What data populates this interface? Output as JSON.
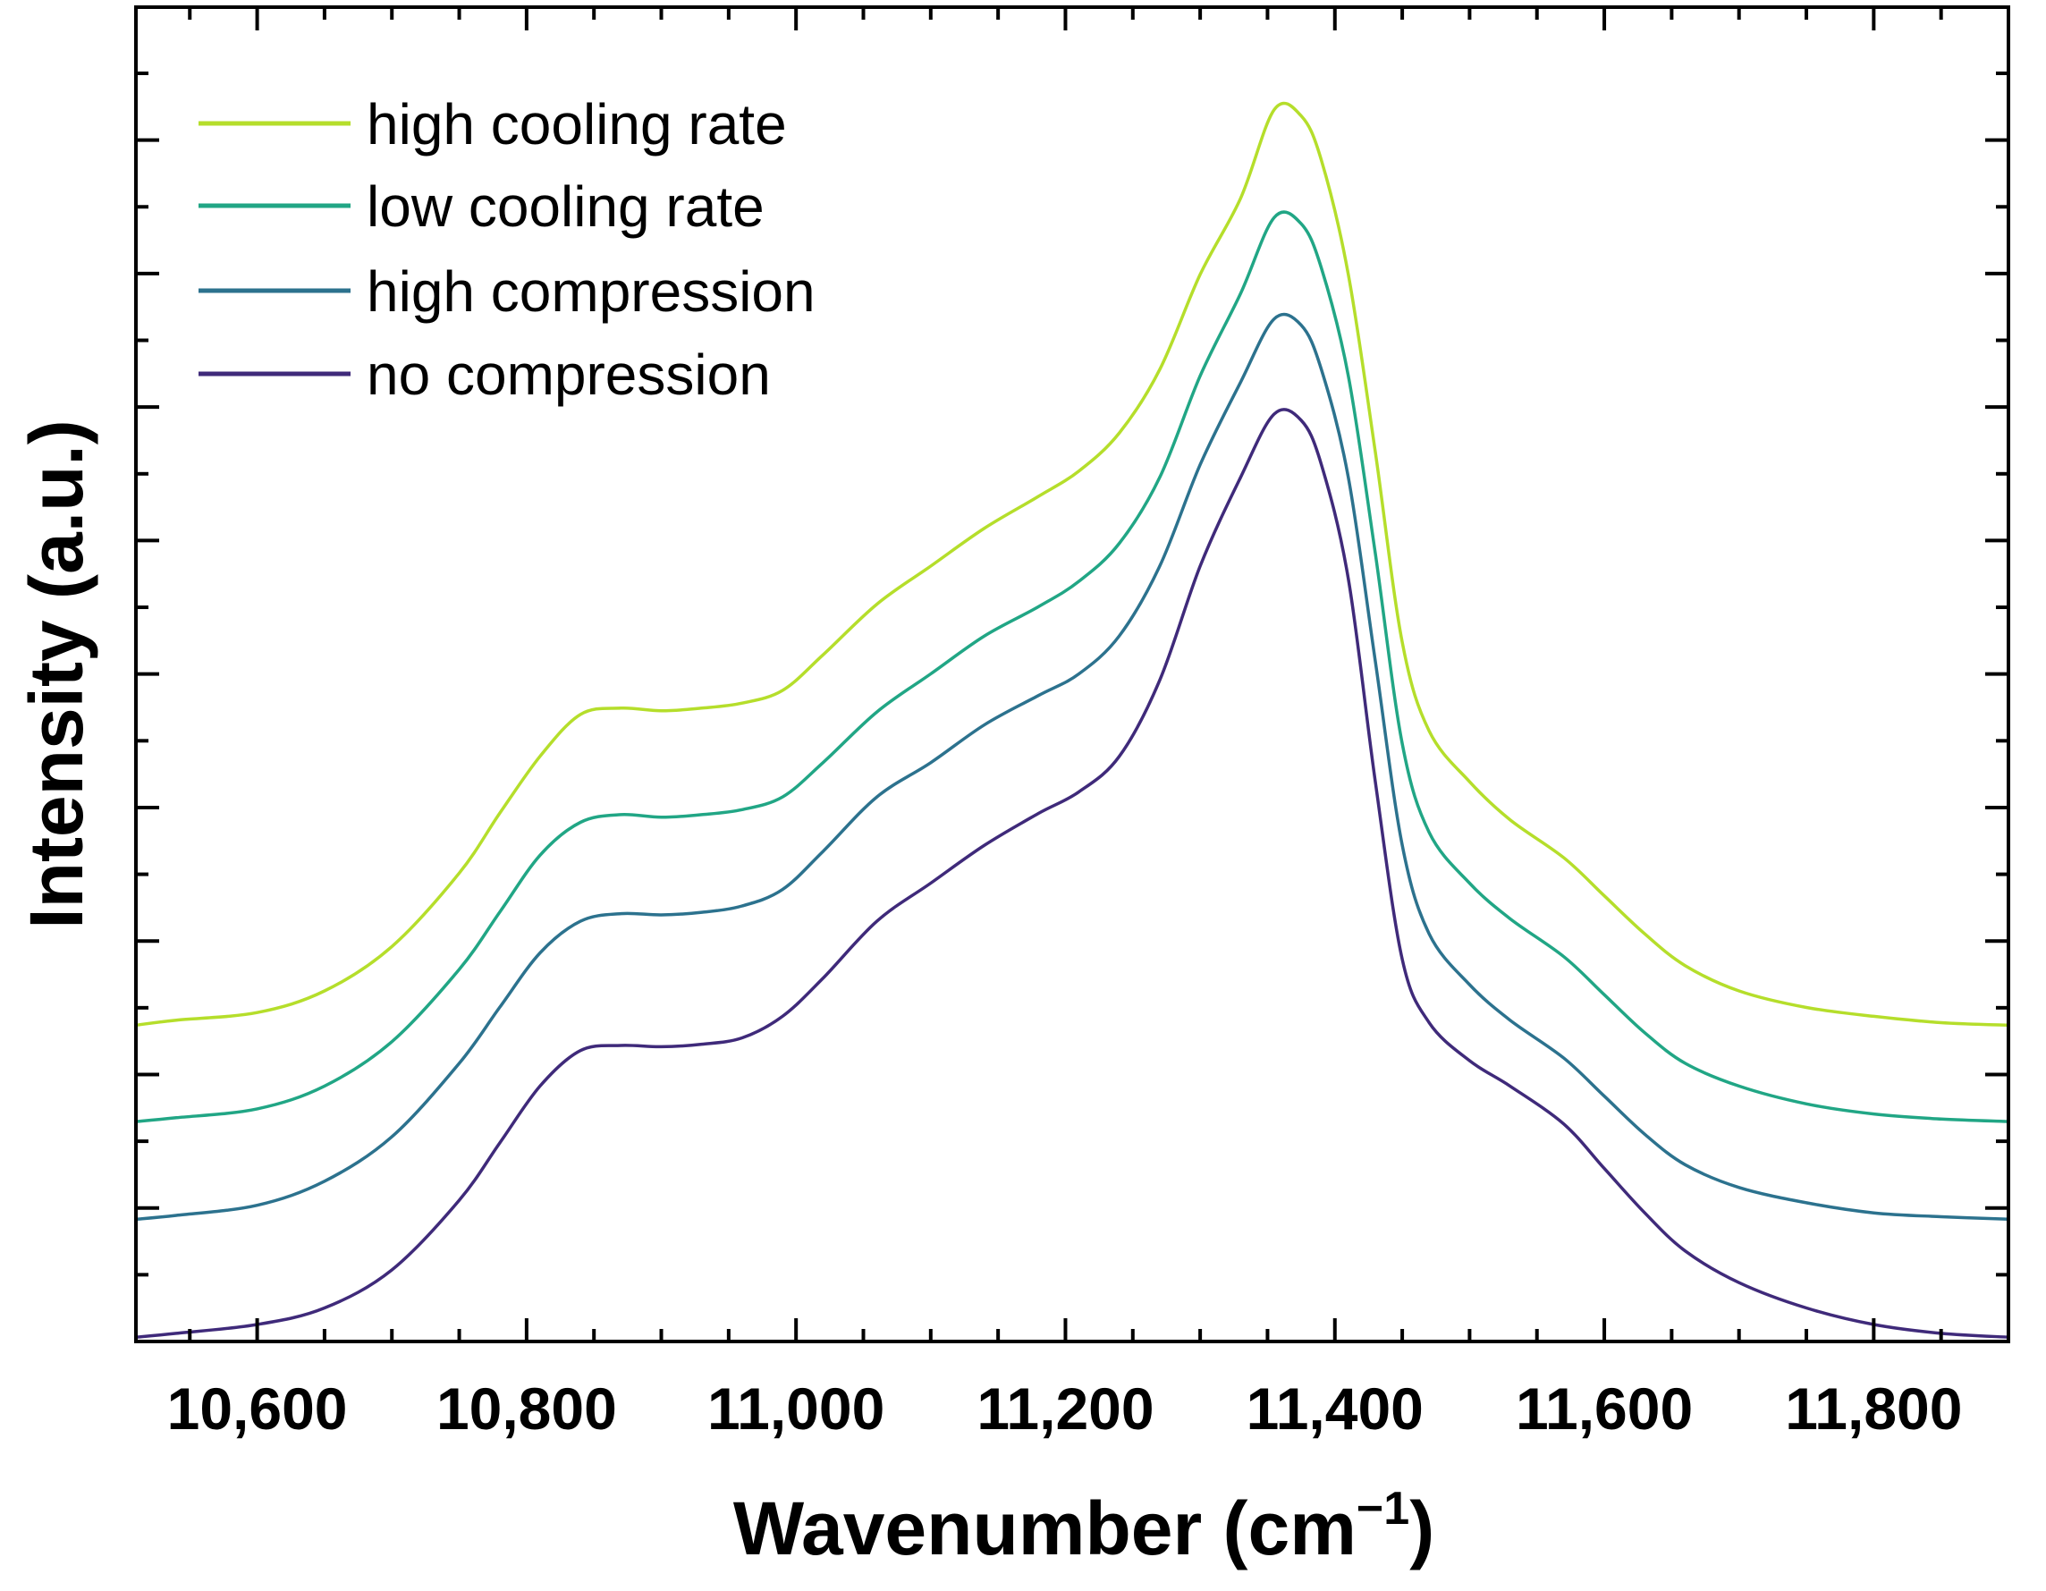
{
  "chart_data": {
    "type": "line",
    "title": "",
    "xlabel": "Wavenumber (cm⁻¹)",
    "xlabel_main": "Wavenumber (cm",
    "xlabel_sup": "−1",
    "xlabel_close": ")",
    "ylabel": "Intensity (a.u.)",
    "xlim": [
      10510,
      11900
    ],
    "ylim": [
      0,
      1
    ],
    "x_ticks": [
      10600,
      10800,
      11000,
      11200,
      11400,
      11600,
      11800
    ],
    "x_tick_labels": [
      "10,600",
      "10,800",
      "11,000",
      "11,200",
      "11,400",
      "11,600",
      "11,800"
    ],
    "y_tick_labels_shown": false,
    "legend_position": "top-left",
    "series": [
      {
        "name": "high cooling rate",
        "color": "#b5de2b",
        "x": [
          10510,
          10540,
          10600,
          10650,
          10700,
          10750,
          10780,
          10810,
          10840,
          10870,
          10900,
          10930,
          10960,
          10990,
          11020,
          11060,
          11100,
          11140,
          11180,
          11210,
          11240,
          11270,
          11300,
          11330,
          11355,
          11375,
          11390,
          11410,
          11430,
          11450,
          11470,
          11500,
          11530,
          11570,
          11600,
          11630,
          11660,
          11700,
          11750,
          11800,
          11850,
          11900
        ],
        "values": [
          0.248,
          0.252,
          0.258,
          0.275,
          0.31,
          0.368,
          0.415,
          0.46,
          0.493,
          0.498,
          0.496,
          0.498,
          0.502,
          0.512,
          0.54,
          0.58,
          0.61,
          0.64,
          0.665,
          0.685,
          0.715,
          0.765,
          0.84,
          0.9,
          0.97,
          0.965,
          0.93,
          0.84,
          0.7,
          0.55,
          0.48,
          0.44,
          0.41,
          0.38,
          0.35,
          0.32,
          0.295,
          0.275,
          0.262,
          0.255,
          0.25,
          0.248
        ]
      },
      {
        "name": "low cooling rate",
        "color": "#21a685",
        "x": [
          10510,
          10540,
          10600,
          10650,
          10700,
          10750,
          10780,
          10810,
          10840,
          10870,
          10900,
          10930,
          10960,
          10990,
          11020,
          11060,
          11100,
          11140,
          11180,
          11210,
          11240,
          11270,
          11300,
          11330,
          11355,
          11375,
          11390,
          11410,
          11430,
          11450,
          11470,
          11500,
          11530,
          11570,
          11600,
          11630,
          11660,
          11700,
          11750,
          11800,
          11850,
          11900
        ],
        "values": [
          0.172,
          0.175,
          0.182,
          0.2,
          0.235,
          0.292,
          0.337,
          0.382,
          0.408,
          0.414,
          0.412,
          0.414,
          0.418,
          0.428,
          0.455,
          0.495,
          0.525,
          0.555,
          0.578,
          0.598,
          0.628,
          0.68,
          0.76,
          0.825,
          0.885,
          0.88,
          0.845,
          0.76,
          0.62,
          0.47,
          0.4,
          0.36,
          0.332,
          0.302,
          0.272,
          0.242,
          0.218,
          0.2,
          0.186,
          0.178,
          0.174,
          0.172
        ]
      },
      {
        "name": "high compression",
        "color": "#2c728e",
        "x": [
          10510,
          10540,
          10600,
          10650,
          10700,
          10750,
          10780,
          10810,
          10840,
          10870,
          10900,
          10930,
          10960,
          10990,
          11020,
          11060,
          11100,
          11140,
          11180,
          11210,
          11240,
          11270,
          11300,
          11330,
          11355,
          11375,
          11390,
          11410,
          11430,
          11450,
          11470,
          11500,
          11530,
          11570,
          11600,
          11630,
          11660,
          11700,
          11750,
          11800,
          11850,
          11900
        ],
        "values": [
          0.095,
          0.098,
          0.106,
          0.125,
          0.16,
          0.218,
          0.262,
          0.305,
          0.33,
          0.336,
          0.335,
          0.337,
          0.342,
          0.355,
          0.385,
          0.428,
          0.455,
          0.485,
          0.508,
          0.525,
          0.555,
          0.61,
          0.69,
          0.755,
          0.805,
          0.8,
          0.765,
          0.68,
          0.535,
          0.39,
          0.32,
          0.28,
          0.252,
          0.222,
          0.192,
          0.162,
          0.138,
          0.12,
          0.108,
          0.1,
          0.097,
          0.095
        ]
      },
      {
        "name": "no compression",
        "color": "#3f2a7a",
        "x": [
          10510,
          10540,
          10600,
          10650,
          10700,
          10750,
          10780,
          10810,
          10840,
          10870,
          10900,
          10930,
          10960,
          10990,
          11020,
          11060,
          11100,
          11140,
          11180,
          11210,
          11240,
          11270,
          11300,
          11330,
          11355,
          11375,
          11390,
          11410,
          11430,
          11450,
          11470,
          11500,
          11530,
          11570,
          11600,
          11630,
          11660,
          11700,
          11750,
          11800,
          11850,
          11900
        ],
        "values": [
          0.002,
          0.005,
          0.012,
          0.025,
          0.055,
          0.11,
          0.155,
          0.2,
          0.228,
          0.232,
          0.231,
          0.233,
          0.238,
          0.255,
          0.285,
          0.33,
          0.36,
          0.39,
          0.415,
          0.432,
          0.46,
          0.52,
          0.61,
          0.68,
          0.73,
          0.725,
          0.69,
          0.6,
          0.44,
          0.3,
          0.25,
          0.22,
          0.2,
          0.17,
          0.135,
          0.1,
          0.07,
          0.045,
          0.025,
          0.012,
          0.005,
          0.002
        ]
      }
    ]
  }
}
